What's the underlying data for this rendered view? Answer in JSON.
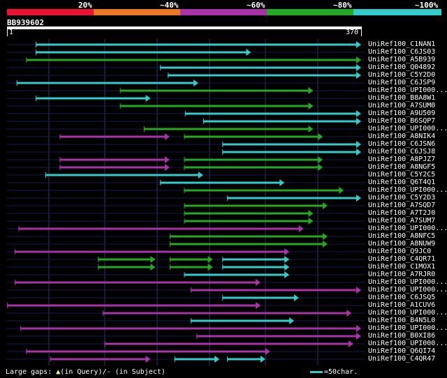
{
  "query": {
    "id": "BB939602",
    "start": "1",
    "end": "370",
    "length": 370
  },
  "legend": [
    {
      "label": "20%",
      "color": "#ee1133"
    },
    {
      "label": "~40%",
      "color": "#ee7722"
    },
    {
      "label": "~60%",
      "color": "#aa33aa"
    },
    {
      "label": "~80%",
      "color": "#22aa22"
    },
    {
      "label": "~100%",
      "color": "#33cccc"
    }
  ],
  "colors": {
    "grid": "#333366",
    "track": "#1a1a55",
    "background": "#000000"
  },
  "footer": {
    "gaps_label": "Large gaps:",
    "in_query": "(in Query)/",
    "in_subject": "- (in Subject)",
    "scale_label": "=50char."
  },
  "hits": [
    {
      "name": "UniRef100_C1NAN1",
      "segs": [
        [
          30,
          370,
          4
        ]
      ]
    },
    {
      "name": "UniRef100_C6JS03",
      "segs": [
        [
          30,
          255,
          4
        ]
      ]
    },
    {
      "name": "UniRef100_A5B939",
      "segs": [
        [
          20,
          370,
          3
        ]
      ]
    },
    {
      "name": "UniRef100_Q04892",
      "segs": [
        [
          160,
          370,
          4
        ]
      ]
    },
    {
      "name": "UniRef100_C5Y2D0",
      "segs": [
        [
          168,
          370,
          4
        ]
      ]
    },
    {
      "name": "UniRef100_C6JSP9",
      "segs": [
        [
          10,
          200,
          4
        ]
      ]
    },
    {
      "name": "UniRef100_UPI000...",
      "segs": [
        [
          118,
          320,
          3
        ]
      ]
    },
    {
      "name": "UniRef100_B8A8W1",
      "segs": [
        [
          30,
          150,
          4
        ]
      ]
    },
    {
      "name": "UniRef100_A7SUM0",
      "segs": [
        [
          118,
          320,
          3
        ]
      ]
    },
    {
      "name": "UniRef100_A9U509",
      "segs": [
        [
          186,
          370,
          4
        ]
      ]
    },
    {
      "name": "UniRef100_B6SQP7",
      "segs": [
        [
          205,
          370,
          4
        ]
      ]
    },
    {
      "name": "UniRef100_UPI000...",
      "segs": [
        [
          143,
          320,
          3
        ]
      ]
    },
    {
      "name": "UniRef100_A8NIK4",
      "segs": [
        [
          55,
          170,
          2
        ],
        [
          185,
          330,
          3
        ]
      ]
    },
    {
      "name": "UniRef100_C6JSN6",
      "segs": [
        [
          225,
          370,
          4
        ]
      ]
    },
    {
      "name": "UniRef100_C6JSJ8",
      "segs": [
        [
          225,
          370,
          4
        ]
      ]
    },
    {
      "name": "UniRef100_A8PJZ7",
      "segs": [
        [
          55,
          170,
          2
        ],
        [
          185,
          330,
          3
        ]
      ]
    },
    {
      "name": "UniRef100_A8NGF5",
      "segs": [
        [
          55,
          170,
          2
        ],
        [
          185,
          330,
          3
        ]
      ]
    },
    {
      "name": "UniRef100_C5Y2C5",
      "segs": [
        [
          40,
          205,
          4
        ]
      ]
    },
    {
      "name": "UniRef100_Q6T4Q1",
      "segs": [
        [
          160,
          290,
          4
        ]
      ]
    },
    {
      "name": "UniRef100_UPI000...",
      "segs": [
        [
          185,
          352,
          3
        ]
      ]
    },
    {
      "name": "UniRef100_C5Y2D3",
      "segs": [
        [
          230,
          370,
          4
        ]
      ]
    },
    {
      "name": "UniRef100_A7SQD7",
      "segs": [
        [
          185,
          335,
          3
        ]
      ]
    },
    {
      "name": "UniRef100_A7T2J0",
      "segs": [
        [
          185,
          320,
          3
        ]
      ]
    },
    {
      "name": "UniRef100_A7SUM7",
      "segs": [
        [
          185,
          320,
          3
        ]
      ]
    },
    {
      "name": "UniRef100_UPI000...",
      "segs": [
        [
          12,
          310,
          2
        ]
      ]
    },
    {
      "name": "UniRef100_A8NFC5",
      "segs": [
        [
          170,
          335,
          3
        ]
      ]
    },
    {
      "name": "UniRef100_A8NUW9",
      "segs": [
        [
          170,
          335,
          3
        ]
      ]
    },
    {
      "name": "UniRef100_Q9JC0",
      "segs": [
        [
          8,
          295,
          2
        ]
      ]
    },
    {
      "name": "UniRef100_C4QR71",
      "segs": [
        [
          95,
          155,
          3
        ],
        [
          170,
          215,
          3
        ],
        [
          225,
          295,
          4
        ]
      ]
    },
    {
      "name": "UniRef100_C1MOX1",
      "segs": [
        [
          95,
          155,
          3
        ],
        [
          170,
          215,
          3
        ],
        [
          225,
          295,
          4
        ]
      ]
    },
    {
      "name": "UniRef100_A7RJR0",
      "segs": [
        [
          185,
          295,
          4
        ]
      ]
    },
    {
      "name": "UniRef100_UPI000...",
      "segs": [
        [
          8,
          265,
          2
        ]
      ]
    },
    {
      "name": "UniRef100_UPI000...",
      "segs": [
        [
          192,
          370,
          2
        ]
      ]
    },
    {
      "name": "UniRef100_C6JSQ5",
      "segs": [
        [
          225,
          305,
          4
        ]
      ]
    },
    {
      "name": "UniRef100_A1CUV6",
      "segs": [
        [
          0,
          265,
          2
        ]
      ]
    },
    {
      "name": "UniRef100_UPI000...",
      "segs": [
        [
          100,
          360,
          2
        ]
      ]
    },
    {
      "name": "UniRef100_B4N5L0",
      "segs": [
        [
          192,
          300,
          4
        ]
      ]
    },
    {
      "name": "UniRef100_UPI000...",
      "segs": [
        [
          14,
          370,
          2
        ]
      ]
    },
    {
      "name": "UniRef100_B0XI86",
      "segs": [
        [
          198,
          370,
          2
        ]
      ]
    },
    {
      "name": "UniRef100_UPI000...",
      "segs": [
        [
          102,
          362,
          2
        ]
      ]
    },
    {
      "name": "UniRef100_Q6QI74",
      "segs": [
        [
          20,
          275,
          2
        ]
      ]
    },
    {
      "name": "UniRef100_C4QR47",
      "segs": [
        [
          45,
          150,
          2
        ],
        [
          175,
          222,
          4
        ],
        [
          230,
          270,
          4
        ]
      ]
    }
  ]
}
